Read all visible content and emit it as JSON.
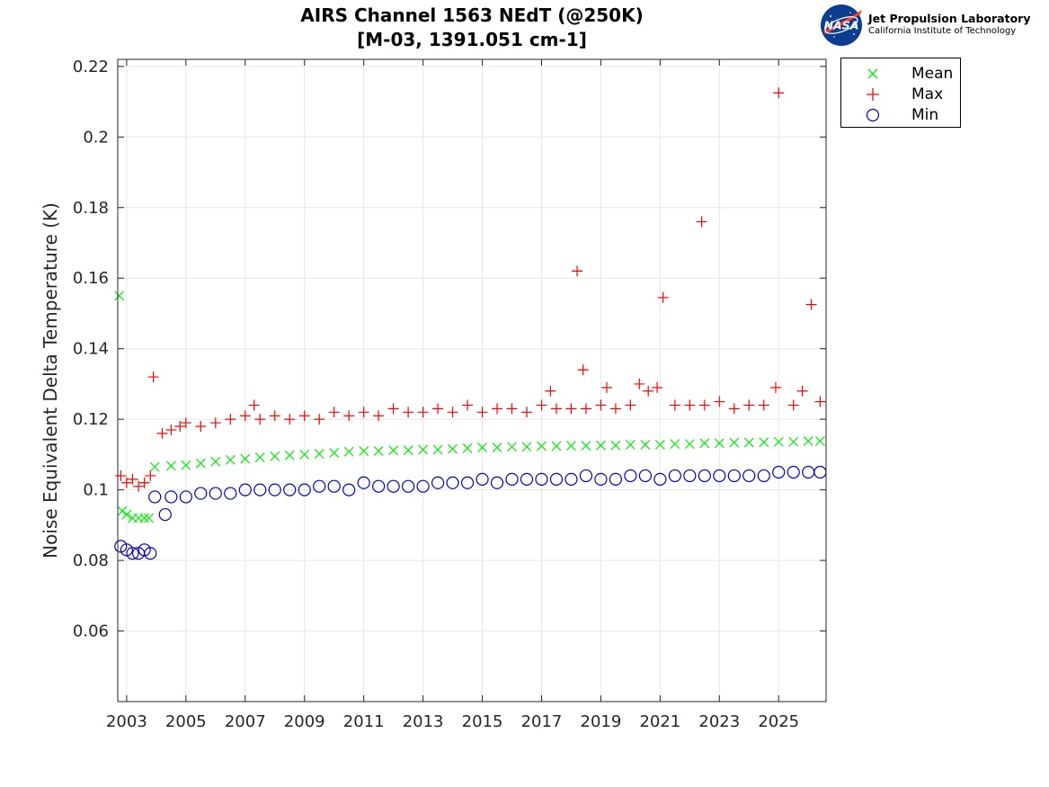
{
  "header": {
    "title_line1": "AIRS Channel 1563 NEdT (@250K)",
    "title_line2": "[M-03, 1391.051 cm-1]"
  },
  "logo": {
    "org_name": "Jet Propulsion Laboratory",
    "org_sub": "California Institute of Technology",
    "meatball_text": "NASA"
  },
  "chart_data": {
    "type": "scatter",
    "title": "AIRS Channel 1563 NEdT (@250K)",
    "subtitle": "[M-03, 1391.051 cm-1]",
    "xlabel": "",
    "ylabel": "Noise Equivalent Delta Temperature (K)",
    "xlim": [
      2002.7,
      2026.6
    ],
    "ylim": [
      0.04,
      0.222
    ],
    "x_ticks": [
      "2003",
      "2005",
      "2007",
      "2009",
      "2011",
      "2013",
      "2015",
      "2017",
      "2019",
      "2021",
      "2023",
      "2025"
    ],
    "y_ticks": [
      "0.06",
      "0.08",
      "0.1",
      "0.12",
      "0.14",
      "0.16",
      "0.18",
      "0.2",
      "0.22"
    ],
    "grid": true,
    "legend_position": "outside-top-right",
    "colors": {
      "Mean": "#00ee00",
      "Max": "#ff0000",
      "Min": "#0000cc"
    },
    "series": [
      {
        "name": "Mean",
        "marker": "x",
        "x": [
          2002.75,
          2002.85,
          2003.0,
          2003.2,
          2003.4,
          2003.6,
          2003.75,
          2003.95,
          2004.5,
          2005.0,
          2005.5,
          2006.0,
          2006.5,
          2007.0,
          2007.5,
          2008.0,
          2008.5,
          2009.0,
          2009.5,
          2010.0,
          2010.5,
          2011.0,
          2011.5,
          2012.0,
          2012.5,
          2013.0,
          2013.5,
          2014.0,
          2014.5,
          2015.0,
          2015.5,
          2016.0,
          2016.5,
          2017.0,
          2017.5,
          2018.0,
          2018.5,
          2019.0,
          2019.5,
          2020.0,
          2020.5,
          2021.0,
          2021.5,
          2022.0,
          2022.5,
          2023.0,
          2023.5,
          2024.0,
          2024.5,
          2025.0,
          2025.5,
          2026.0,
          2026.4
        ],
        "y": [
          0.155,
          0.094,
          0.093,
          0.092,
          0.092,
          0.092,
          0.092,
          0.1065,
          0.1068,
          0.107,
          0.1075,
          0.108,
          0.1085,
          0.1088,
          0.1092,
          0.1095,
          0.1098,
          0.11,
          0.1102,
          0.1105,
          0.1108,
          0.111,
          0.111,
          0.1112,
          0.1112,
          0.1114,
          0.1114,
          0.1116,
          0.1118,
          0.112,
          0.112,
          0.1122,
          0.1122,
          0.1124,
          0.1124,
          0.1125,
          0.1125,
          0.1126,
          0.1126,
          0.1128,
          0.1128,
          0.1128,
          0.113,
          0.113,
          0.1132,
          0.1132,
          0.1134,
          0.1134,
          0.1135,
          0.1136,
          0.1136,
          0.1138,
          0.1138
        ]
      },
      {
        "name": "Max",
        "marker": "+",
        "x": [
          2002.8,
          2003.0,
          2003.2,
          2003.4,
          2003.6,
          2003.8,
          2003.9,
          2004.2,
          2004.5,
          2004.8,
          2005.0,
          2005.5,
          2006.0,
          2006.5,
          2007.0,
          2007.3,
          2007.5,
          2008.0,
          2008.5,
          2009.0,
          2009.5,
          2010.0,
          2010.5,
          2011.0,
          2011.5,
          2012.0,
          2012.5,
          2013.0,
          2013.5,
          2014.0,
          2014.5,
          2015.0,
          2015.5,
          2016.0,
          2016.5,
          2017.0,
          2017.3,
          2017.5,
          2018.0,
          2018.2,
          2018.4,
          2018.5,
          2019.0,
          2019.2,
          2019.5,
          2020.0,
          2020.3,
          2020.6,
          2020.9,
          2021.1,
          2021.5,
          2022.0,
          2022.4,
          2022.5,
          2023.0,
          2023.5,
          2024.0,
          2024.5,
          2024.9,
          2025.0,
          2025.5,
          2025.8,
          2026.1,
          2026.4
        ],
        "y": [
          0.104,
          0.102,
          0.103,
          0.101,
          0.102,
          0.104,
          0.132,
          0.116,
          0.117,
          0.118,
          0.119,
          0.118,
          0.119,
          0.12,
          0.121,
          0.124,
          0.12,
          0.121,
          0.12,
          0.121,
          0.12,
          0.122,
          0.121,
          0.122,
          0.121,
          0.123,
          0.122,
          0.122,
          0.123,
          0.122,
          0.124,
          0.122,
          0.123,
          0.123,
          0.122,
          0.124,
          0.128,
          0.123,
          0.123,
          0.162,
          0.134,
          0.123,
          0.124,
          0.129,
          0.123,
          0.124,
          0.13,
          0.128,
          0.129,
          0.1545,
          0.124,
          0.124,
          0.176,
          0.124,
          0.125,
          0.123,
          0.124,
          0.124,
          0.129,
          0.2125,
          0.124,
          0.128,
          0.1525,
          0.125
        ]
      },
      {
        "name": "Min",
        "marker": "o",
        "x": [
          2002.8,
          2003.0,
          2003.2,
          2003.4,
          2003.6,
          2003.8,
          2003.95,
          2004.3,
          2004.5,
          2005.0,
          2005.5,
          2006.0,
          2006.5,
          2007.0,
          2007.5,
          2008.0,
          2008.5,
          2009.0,
          2009.5,
          2010.0,
          2010.5,
          2011.0,
          2011.5,
          2012.0,
          2012.5,
          2013.0,
          2013.5,
          2014.0,
          2014.5,
          2015.0,
          2015.5,
          2016.0,
          2016.5,
          2017.0,
          2017.5,
          2018.0,
          2018.5,
          2019.0,
          2019.5,
          2020.0,
          2020.5,
          2021.0,
          2021.5,
          2022.0,
          2022.5,
          2023.0,
          2023.5,
          2024.0,
          2024.5,
          2025.0,
          2025.5,
          2026.0,
          2026.4
        ],
        "y": [
          0.084,
          0.083,
          0.082,
          0.082,
          0.083,
          0.082,
          0.098,
          0.093,
          0.098,
          0.098,
          0.099,
          0.099,
          0.099,
          0.1,
          0.1,
          0.1,
          0.1,
          0.1,
          0.101,
          0.101,
          0.1,
          0.102,
          0.101,
          0.101,
          0.101,
          0.101,
          0.102,
          0.102,
          0.102,
          0.103,
          0.102,
          0.103,
          0.103,
          0.103,
          0.103,
          0.103,
          0.104,
          0.103,
          0.103,
          0.104,
          0.104,
          0.103,
          0.104,
          0.104,
          0.104,
          0.104,
          0.104,
          0.104,
          0.104,
          0.105,
          0.105,
          0.105,
          0.105
        ]
      }
    ]
  }
}
